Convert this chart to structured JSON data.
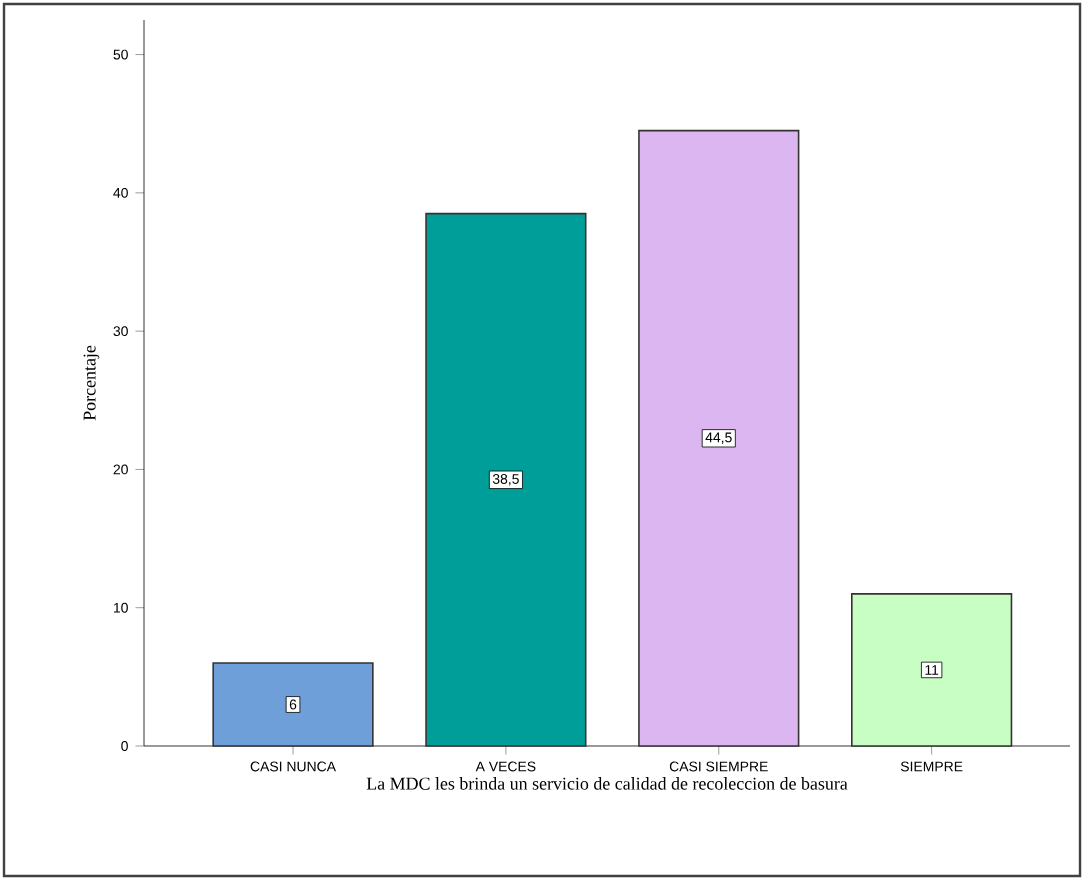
{
  "chart_data": {
    "type": "bar",
    "xlabel": "La MDC les brinda un servicio de calidad de recoleccion de basura",
    "ylabel": "Porcentaje",
    "categories": [
      "CASI NUNCA",
      "A VECES",
      "CASI SIEMPRE",
      "SIEMPRE"
    ],
    "values": [
      6,
      38.5,
      44.5,
      11
    ],
    "value_labels": [
      "6",
      "38,5",
      "44,5",
      "11"
    ],
    "colors": [
      "#6f9fd8",
      "#009e99",
      "#dbb6f0",
      "#c8fdc4"
    ],
    "ylim": [
      0,
      52.5
    ],
    "yticks": [
      0,
      10,
      20,
      30,
      40,
      50
    ]
  }
}
